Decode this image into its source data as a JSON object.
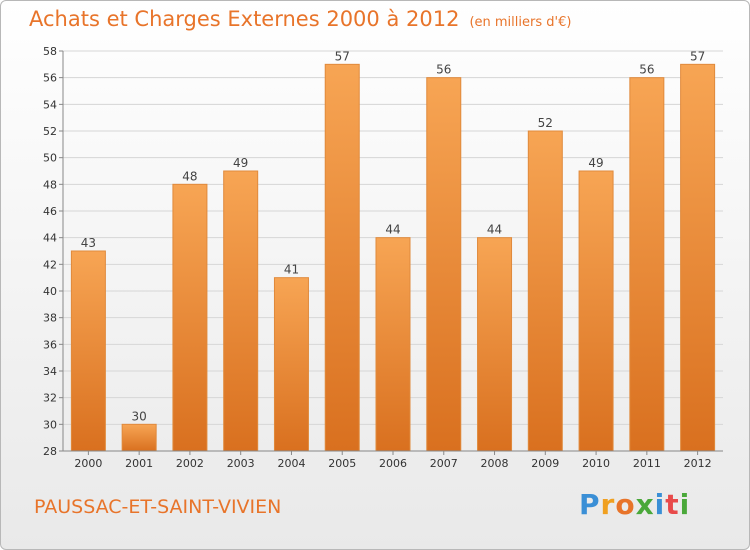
{
  "title": "Achats et Charges Externes 2000 à 2012",
  "unit": "(en milliers d'€)",
  "commune": "PAUSSAC-ET-SAINT-VIVIEN",
  "logo": {
    "letters": [
      "P",
      "r",
      "o",
      "x",
      "i",
      "t",
      "i"
    ],
    "colors": [
      "#3a8fd6",
      "#f0a020",
      "#e8742a",
      "#4aa83a",
      "#3a8fd6",
      "#e84a4a",
      "#4aa83a"
    ]
  },
  "colors": {
    "bar_top": "#f7a554",
    "bar_bottom": "#d9701f",
    "title": "#e8742a",
    "grid": "#d6d6d6"
  },
  "chart_data": {
    "type": "bar",
    "title": "Achats et Charges Externes 2000 à 2012",
    "subtitle": "(en milliers d'€)",
    "xlabel": "",
    "ylabel": "",
    "categories": [
      "2000",
      "2001",
      "2002",
      "2003",
      "2004",
      "2005",
      "2006",
      "2007",
      "2008",
      "2009",
      "2010",
      "2011",
      "2012"
    ],
    "values": [
      43,
      30,
      48,
      49,
      41,
      57,
      44,
      56,
      44,
      52,
      49,
      56,
      57
    ],
    "ylim": [
      28,
      58
    ],
    "yticks": [
      28,
      30,
      32,
      34,
      36,
      38,
      40,
      42,
      44,
      46,
      48,
      50,
      52,
      54,
      56,
      58
    ],
    "grid": true,
    "legend": "none"
  }
}
